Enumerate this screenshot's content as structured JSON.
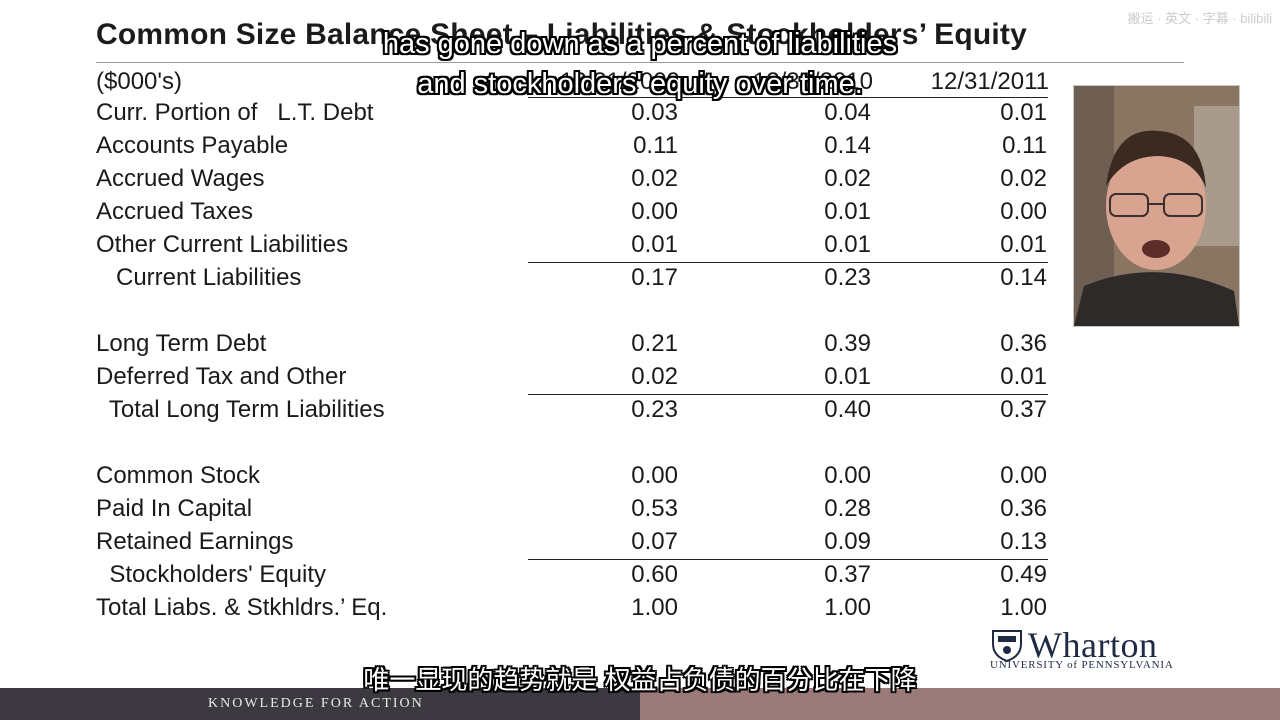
{
  "watermark": "搬运 · 英文 · 字幕 · bilibili",
  "slide": {
    "title": "Common Size Balance Sheet – Liabilities & Stockholders’ Equity",
    "units": "($000's)",
    "columns": [
      "12/31/2009",
      "12/31/2010",
      "12/31/2011"
    ],
    "rows": [
      {
        "label": "Curr. Portion of   L.T. Debt",
        "values": [
          "0.03",
          "0.04",
          "0.01"
        ]
      },
      {
        "label": "Accounts Payable",
        "values": [
          "0.11",
          "0.14",
          "0.11"
        ]
      },
      {
        "label": "Accrued Wages",
        "values": [
          "0.02",
          "0.02",
          "0.02"
        ]
      },
      {
        "label": "Accrued Taxes",
        "values": [
          "0.00",
          "0.01",
          "0.00"
        ]
      },
      {
        "label": "Other Current Liabilities",
        "values": [
          "0.01",
          "0.01",
          "0.01"
        ]
      },
      {
        "label": "   Current Liabilities",
        "values": [
          "0.17",
          "0.23",
          "0.14"
        ]
      },
      {
        "label": "Long Term Debt",
        "values": [
          "0.21",
          "0.39",
          "0.36"
        ]
      },
      {
        "label": "Deferred Tax and Other",
        "values": [
          "0.02",
          "0.01",
          "0.01"
        ]
      },
      {
        "label": "  Total Long Term Liabilities",
        "values": [
          "0.23",
          "0.40",
          "0.37"
        ]
      },
      {
        "label": "Common Stock",
        "values": [
          "0.00",
          "0.00",
          "0.00"
        ]
      },
      {
        "label": "Paid In Capital",
        "values": [
          "0.53",
          "0.28",
          "0.36"
        ]
      },
      {
        "label": "Retained Earnings",
        "values": [
          "0.07",
          "0.09",
          "0.13"
        ]
      },
      {
        "label": "  Stockholders' Equity",
        "values": [
          "0.60",
          "0.37",
          "0.49"
        ]
      },
      {
        "label": "Total Liabs. & Stkhldrs.’ Eq.",
        "values": [
          "1.00",
          "1.00",
          "1.00"
        ]
      }
    ]
  },
  "subtitles": {
    "en_line1": "has gone down as a percent of liabilities",
    "en_line2": "and stockholders' equity over time.",
    "cn": "唯一显现的趋势就是 权益占负债的百分比在下降"
  },
  "logo": {
    "name": "Wharton",
    "subtitle": "UNIVERSITY of PENNSYLVANIA"
  },
  "footer": {
    "tagline": "KNOWLEDGE FOR ACTION",
    "left_color": "#3c3a40",
    "right_color": "#9b7b7a"
  }
}
